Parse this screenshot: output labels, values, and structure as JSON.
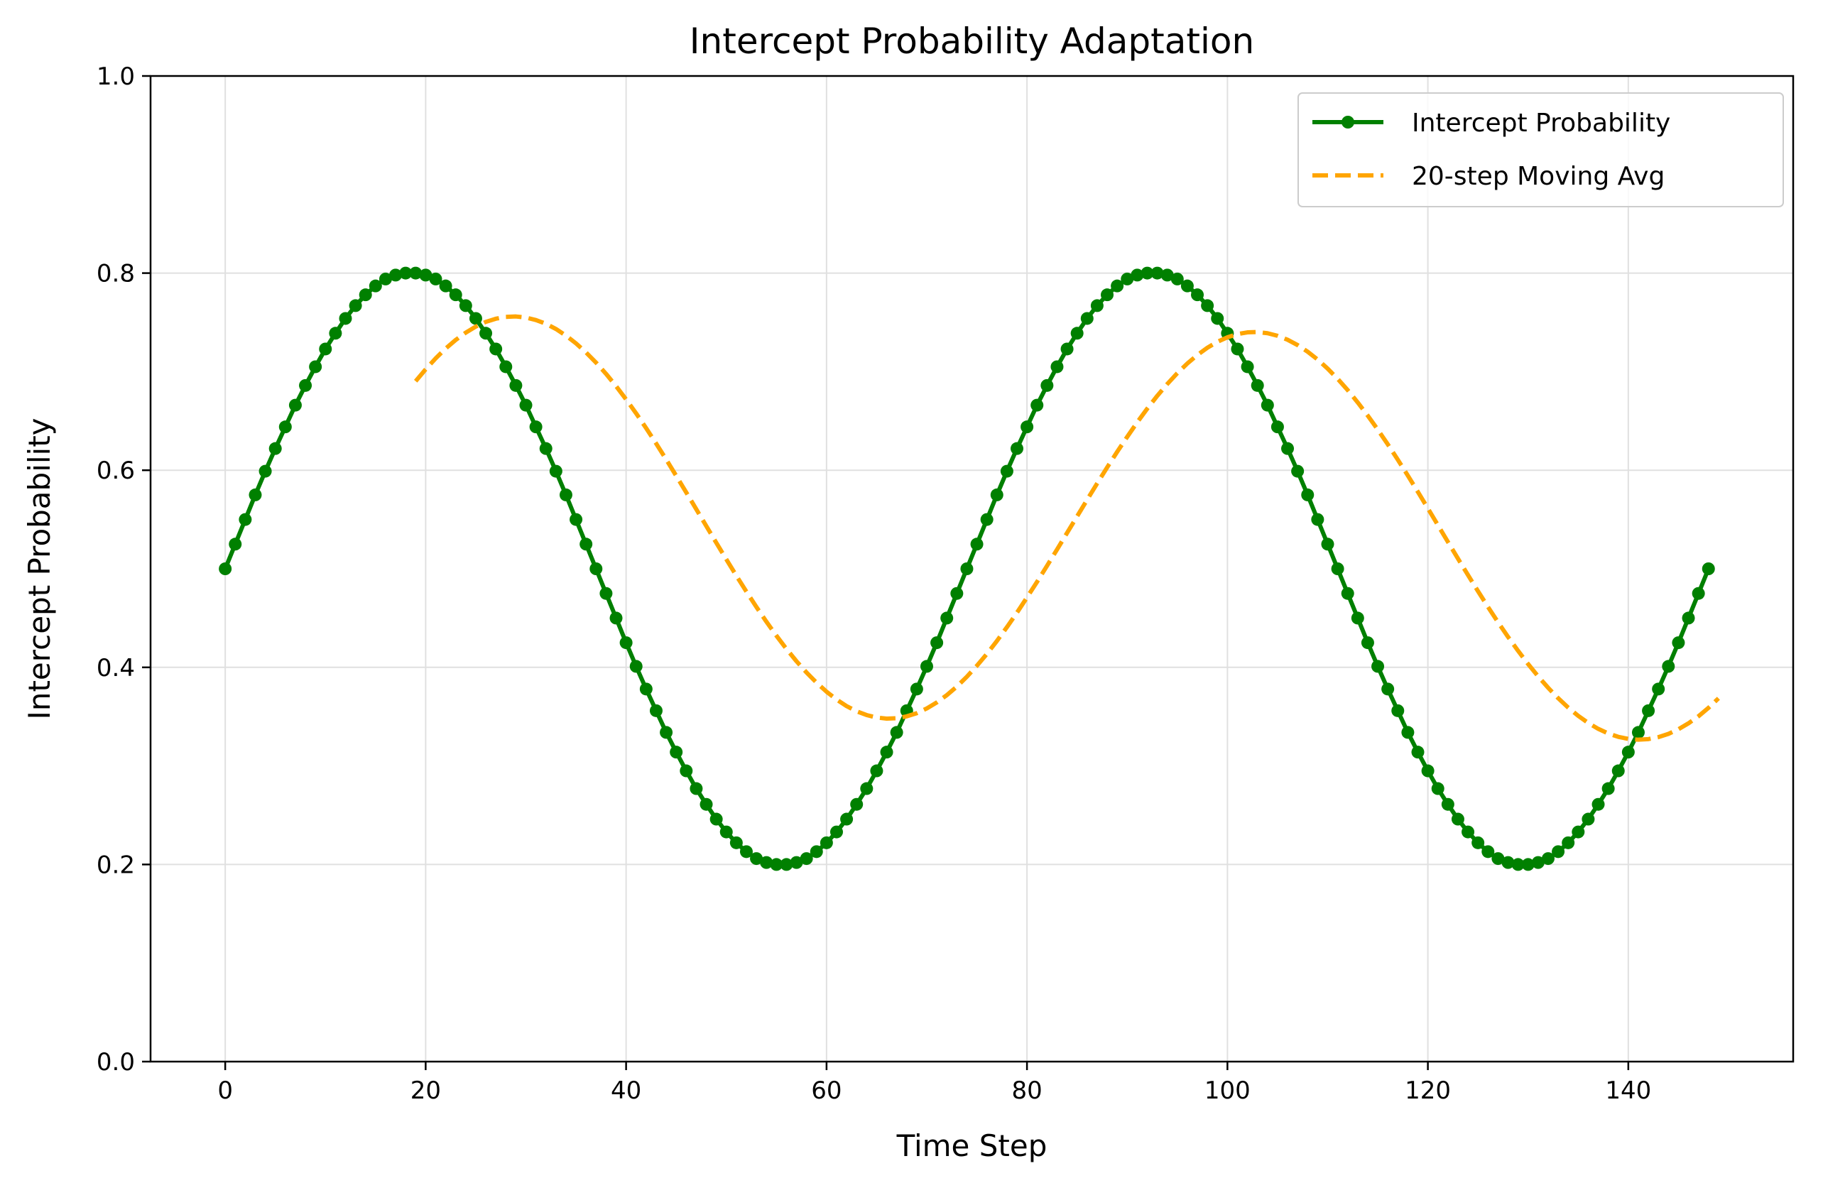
{
  "chart_data": {
    "type": "line",
    "title": "Intercept Probability Adaptation",
    "xlabel": "Time Step",
    "ylabel": "Intercept Probability",
    "xlim": [
      -7.45,
      156.45
    ],
    "ylim": [
      0.0,
      1.0
    ],
    "xticks": [
      "0",
      "20",
      "40",
      "60",
      "80",
      "100",
      "120",
      "140"
    ],
    "yticks": [
      "0.0",
      "0.2",
      "0.4",
      "0.6",
      "0.8",
      "1.0"
    ],
    "grid": true,
    "legend_position": "top-right",
    "series": [
      {
        "name": "Intercept Probability",
        "style": "solid-with-markers",
        "color": "#008000",
        "x_start": 0,
        "x_step": 1,
        "values": [
          0.5,
          0.525,
          0.55,
          0.575,
          0.599,
          0.622,
          0.644,
          0.666,
          0.686,
          0.705,
          0.723,
          0.739,
          0.754,
          0.767,
          0.778,
          0.787,
          0.794,
          0.798,
          0.8,
          0.8,
          0.798,
          0.794,
          0.787,
          0.778,
          0.767,
          0.754,
          0.739,
          0.723,
          0.705,
          0.686,
          0.666,
          0.644,
          0.622,
          0.599,
          0.575,
          0.55,
          0.525,
          0.5,
          0.475,
          0.45,
          0.425,
          0.401,
          0.378,
          0.356,
          0.334,
          0.314,
          0.295,
          0.277,
          0.261,
          0.246,
          0.233,
          0.222,
          0.213,
          0.206,
          0.202,
          0.2,
          0.2,
          0.202,
          0.206,
          0.213,
          0.222,
          0.233,
          0.246,
          0.261,
          0.277,
          0.295,
          0.314,
          0.334,
          0.356,
          0.378,
          0.401,
          0.425,
          0.45,
          0.475,
          0.5,
          0.525,
          0.55,
          0.575,
          0.599,
          0.622,
          0.644,
          0.666,
          0.686,
          0.705,
          0.723,
          0.739,
          0.754,
          0.767,
          0.778,
          0.787,
          0.794,
          0.798,
          0.8,
          0.8,
          0.798,
          0.794,
          0.787,
          0.778,
          0.767,
          0.754,
          0.739,
          0.723,
          0.705,
          0.686,
          0.666,
          0.644,
          0.622,
          0.599,
          0.575,
          0.55,
          0.525,
          0.5,
          0.475,
          0.45,
          0.425,
          0.401,
          0.378,
          0.356,
          0.334,
          0.314,
          0.295,
          0.277,
          0.261,
          0.246,
          0.233,
          0.222,
          0.213,
          0.206,
          0.202,
          0.2,
          0.2,
          0.202,
          0.206,
          0.213,
          0.222,
          0.233,
          0.246,
          0.261,
          0.277,
          0.295,
          0.314,
          0.334,
          0.356,
          0.378,
          0.401,
          0.425,
          0.45,
          0.475,
          0.5
        ]
      },
      {
        "name": "20-step Moving Avg",
        "style": "dashed",
        "color": "#FFA500",
        "x_start": 19,
        "x_step": 1,
        "values": [
          0.6903,
          0.7024,
          0.7135,
          0.7235,
          0.7322,
          0.7396,
          0.7457,
          0.7505,
          0.7537,
          0.7556,
          0.756,
          0.7549,
          0.7524,
          0.7486,
          0.7433,
          0.7366,
          0.7287,
          0.7195,
          0.7092,
          0.6978,
          0.6853,
          0.6719,
          0.6577,
          0.6427,
          0.6271,
          0.6109,
          0.5943,
          0.5775,
          0.5605,
          0.5434,
          0.5264,
          0.5096,
          0.493,
          0.4769,
          0.4613,
          0.4463,
          0.4321,
          0.4187,
          0.4062,
          0.3948,
          0.3845,
          0.3753,
          0.3674,
          0.3607,
          0.3554,
          0.3516,
          0.3491,
          0.348,
          0.3484,
          0.3503,
          0.3535,
          0.3583,
          0.3644,
          0.3718,
          0.3805,
          0.3905,
          0.4016,
          0.4137,
          0.4268,
          0.4408,
          0.4555,
          0.4709,
          0.4867,
          0.503,
          0.5196,
          0.5364,
          0.5532,
          0.57,
          0.5866,
          0.6029,
          0.6187,
          0.6339,
          0.6486,
          0.6625,
          0.6755,
          0.6875,
          0.6985,
          0.7083,
          0.7169,
          0.7243,
          0.7303,
          0.7349,
          0.7381,
          0.7399,
          0.7402,
          0.739,
          0.7364,
          0.7324,
          0.727,
          0.7203,
          0.7123,
          0.7031,
          0.6927,
          0.6813,
          0.6688,
          0.6554,
          0.6412,
          0.6263,
          0.6107,
          0.5946,
          0.5781,
          0.5613,
          0.5443,
          0.5273,
          0.5104,
          0.4937,
          0.4773,
          0.4613,
          0.4458,
          0.4309,
          0.4168,
          0.4034,
          0.3909,
          0.3793,
          0.3687,
          0.3592,
          0.3508,
          0.3436,
          0.3376,
          0.3329,
          0.3295,
          0.3274,
          0.3266,
          0.3272,
          0.3292,
          0.3325,
          0.3372,
          0.3432,
          0.3504,
          0.3589,
          0.3686
        ]
      }
    ]
  }
}
